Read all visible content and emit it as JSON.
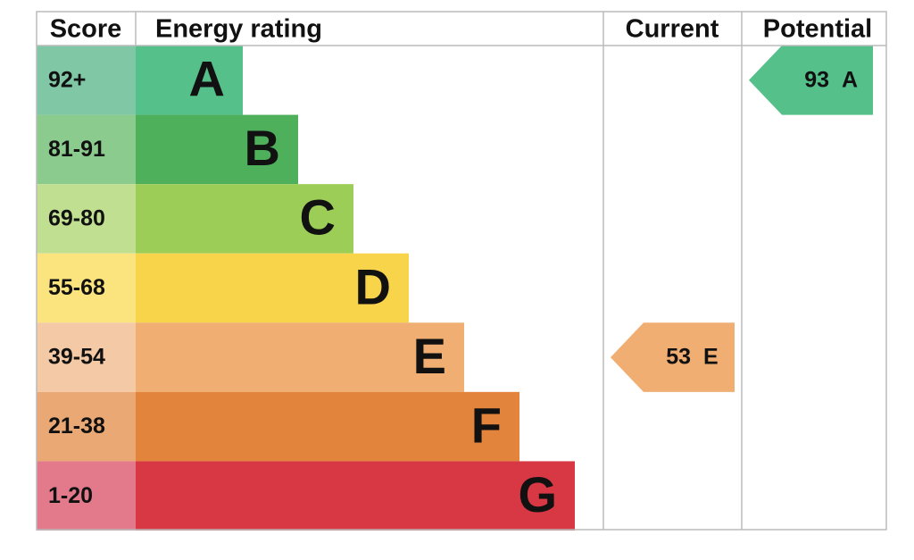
{
  "headers": {
    "score": "Score",
    "rating": "Energy rating",
    "current": "Current",
    "potential": "Potential"
  },
  "bands": [
    {
      "score": "92+",
      "letter": "A",
      "color": "#55c08a",
      "light": "#80c7a6"
    },
    {
      "score": "81-91",
      "letter": "B",
      "color": "#4fb05c",
      "light": "#8ccb8e"
    },
    {
      "score": "69-80",
      "letter": "C",
      "color": "#9ccd56",
      "light": "#c0df91"
    },
    {
      "score": "55-68",
      "letter": "D",
      "color": "#f7d44a",
      "light": "#fbe37e"
    },
    {
      "score": "39-54",
      "letter": "E",
      "color": "#f0ae72",
      "light": "#f4c9a5"
    },
    {
      "score": "21-38",
      "letter": "F",
      "color": "#e2843b",
      "light": "#eaa974"
    },
    {
      "score": "1-20",
      "letter": "G",
      "color": "#d83744",
      "light": "#e27a8c"
    }
  ],
  "current": {
    "value": 53,
    "letter": "E"
  },
  "potential": {
    "value": 93,
    "letter": "A"
  }
}
